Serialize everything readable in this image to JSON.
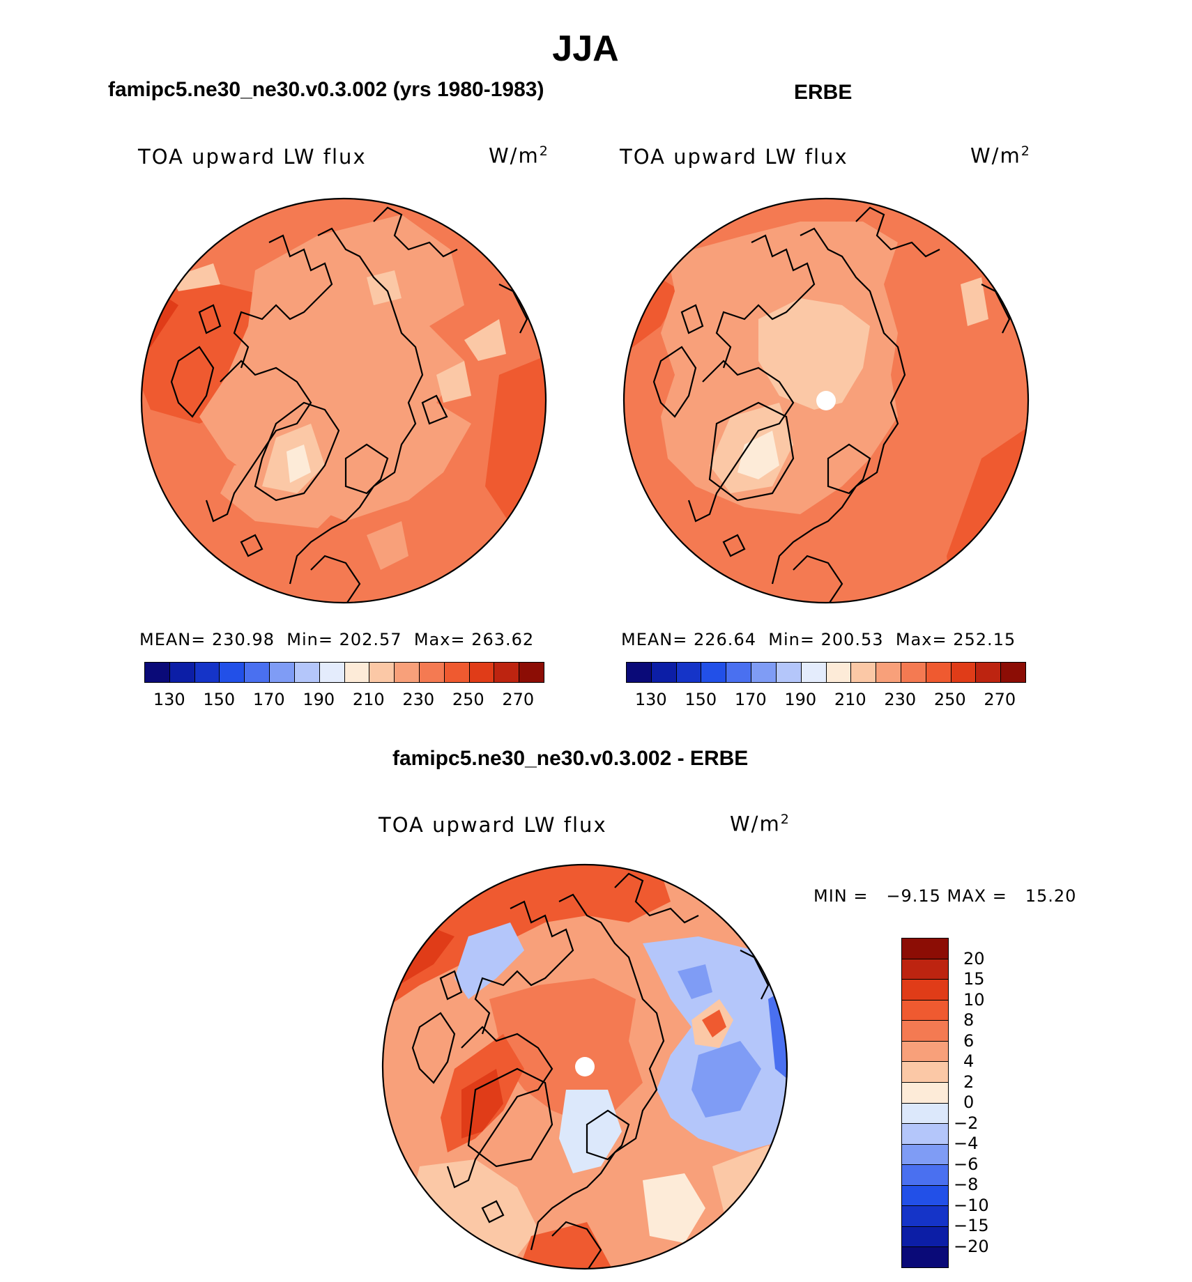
{
  "title": "JJA",
  "panels": [
    {
      "heading": "famipc5.ne30_ne30.v0.3.002 (yrs 1980-1983)",
      "field_label": "TOA upward LW flux",
      "units": "W/m",
      "units_exp": "2",
      "stats": {
        "mean_label": "MEAN=",
        "mean": "230.98",
        "min_label": "Min=",
        "min": "202.57",
        "max_label": "Max=",
        "max": "263.62"
      }
    },
    {
      "heading": "ERBE",
      "field_label": "TOA upward LW flux",
      "units": "W/m",
      "units_exp": "2",
      "stats": {
        "mean_label": "MEAN=",
        "mean": "226.64",
        "min_label": "Min=",
        "min": "200.53",
        "max_label": "Max=",
        "max": "252.15"
      }
    }
  ],
  "abs_colorbar": {
    "colors": [
      "#0a0a78",
      "#0c1ea6",
      "#1534c8",
      "#2250e8",
      "#4a70f0",
      "#7f9cf5",
      "#b4c6fa",
      "#e4ecfc",
      "#fdebd8",
      "#fbc8a6",
      "#f8a07a",
      "#f47a52",
      "#ef5a30",
      "#e03c18",
      "#bd2410",
      "#8c0d05"
    ],
    "tick_labels": [
      "130",
      "150",
      "170",
      "190",
      "210",
      "230",
      "250",
      "270"
    ]
  },
  "diff_panel": {
    "heading": "famipc5.ne30_ne30.v0.3.002 - ERBE",
    "field_label": "TOA upward LW flux",
    "units": "W/m",
    "units_exp": "2",
    "minmax_text": "MIN =   −9.15 MAX =   15.20"
  },
  "diff_colorbar": {
    "colors": [
      "#8c0d05",
      "#bd2410",
      "#e03c18",
      "#ef5a30",
      "#f47a52",
      "#f8a07a",
      "#fbc8a6",
      "#fdebd8",
      "#dce8fb",
      "#b4c6fa",
      "#7f9cf5",
      "#4a70f0",
      "#2250e8",
      "#1534c8",
      "#0c1ea6",
      "#0a0a78"
    ],
    "tick_labels": [
      "20",
      "15",
      "10",
      "8",
      "6",
      "4",
      "2",
      "0",
      "−2",
      "−4",
      "−6",
      "−8",
      "−10",
      "−15",
      "−20"
    ]
  },
  "icons": {
    "pole_marker": "pole-hole-icon"
  }
}
